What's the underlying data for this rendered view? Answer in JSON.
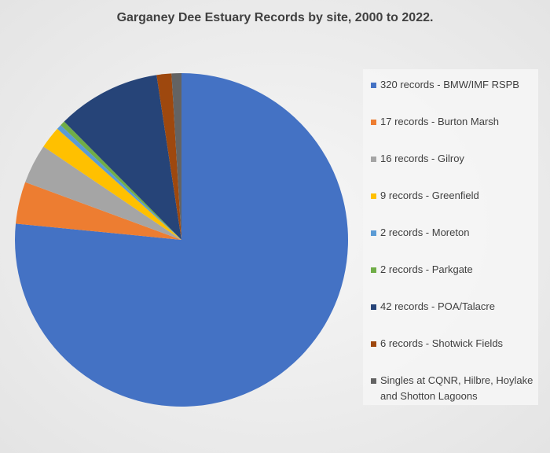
{
  "chart_data": {
    "type": "pie",
    "title": "Garganey Dee Estuary Records by site, 2000 to 2022.",
    "categories": [
      "320 records - BMW/IMF RSPB",
      "17 records - Burton Marsh",
      "16 records - Gilroy",
      "9 records - Greenfield",
      "2 records - Moreton",
      "2 records - Parkgate",
      "42 records - POA/Talacre",
      "6 records - Shotwick Fields",
      "Singles at CQNR, Hilbre, Hoylake and Shotton Lagoons"
    ],
    "values": [
      320,
      17,
      16,
      9,
      2,
      2,
      42,
      6,
      4
    ],
    "colors": [
      "#4472c4",
      "#ed7d31",
      "#a5a5a5",
      "#ffc000",
      "#5b9bd5",
      "#70ad47",
      "#264478",
      "#9e480e",
      "#636363"
    ],
    "legend": "right"
  }
}
